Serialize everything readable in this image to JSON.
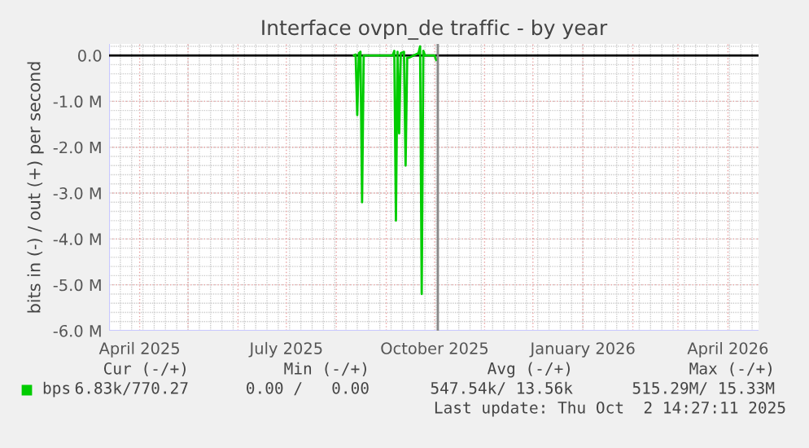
{
  "chart_data": {
    "type": "line",
    "title": "Interface ovpn_de traffic - by year",
    "ylabel": "bits in (-) / out (+) per second",
    "x": [
      "2025-08-12",
      "2025-08-13",
      "2025-08-14",
      "2025-08-15",
      "2025-08-16",
      "2025-08-17",
      "2025-08-18",
      "2025-09-05",
      "2025-09-06",
      "2025-09-07",
      "2025-09-08",
      "2025-09-09",
      "2025-09-10",
      "2025-09-12",
      "2025-09-13",
      "2025-09-14",
      "2025-09-15",
      "2025-09-21",
      "2025-09-22",
      "2025-09-23",
      "2025-09-24",
      "2025-09-25",
      "2025-10-01",
      "2025-10-02"
    ],
    "series": [
      {
        "name": "bps",
        "color": "#00cc00",
        "values": [
          0.0,
          0.02,
          -1.3,
          0.05,
          0.08,
          -3.2,
          0.0,
          0.0,
          0.1,
          -3.6,
          0.08,
          -1.7,
          0.05,
          0.08,
          -2.4,
          -0.05,
          -0.05,
          0.05,
          0.2,
          -5.2,
          0.1,
          0.0,
          0.0,
          -0.1
        ]
      }
    ],
    "xlim": [
      "2025-03-13",
      "2026-04-20"
    ],
    "xticks": [
      {
        "value": "2025-04-01",
        "label": "April 2025"
      },
      {
        "value": "2025-05-01",
        "label": null
      },
      {
        "value": "2025-06-01",
        "label": null
      },
      {
        "value": "2025-07-01",
        "label": "July 2025"
      },
      {
        "value": "2025-08-01",
        "label": null
      },
      {
        "value": "2025-09-01",
        "label": null
      },
      {
        "value": "2025-10-01",
        "label": "October 2025"
      },
      {
        "value": "2025-11-01",
        "label": null
      },
      {
        "value": "2025-12-01",
        "label": null
      },
      {
        "value": "2026-01-01",
        "label": "January 2026"
      },
      {
        "value": "2026-02-01",
        "label": null
      },
      {
        "value": "2026-03-01",
        "label": null
      },
      {
        "value": "2026-04-01",
        "label": "April 2026"
      }
    ],
    "ylim": [
      -6.0,
      0.25
    ],
    "yticks": [
      {
        "value": -6,
        "label": "-6.0 M"
      },
      {
        "value": -5,
        "label": "-5.0 M"
      },
      {
        "value": -4,
        "label": "-4.0 M"
      },
      {
        "value": -3,
        "label": "-3.0 M"
      },
      {
        "value": -2,
        "label": "-2.0 M"
      },
      {
        "value": -1,
        "label": "-1.0 M"
      },
      {
        "value": 0,
        "label": "0.0"
      }
    ],
    "ref_lines": [
      {
        "axis": "y",
        "value": 0,
        "label": null,
        "color": "#000000"
      },
      {
        "axis": "x",
        "value": "2025-10-03",
        "label": null,
        "color": "#888888"
      }
    ],
    "grid": true,
    "legend": "bottom left",
    "annotations": [
      "Cur (-/+)",
      "Min (-/+)",
      "Avg (-/+)",
      "Max (-/+)",
      "6.83k/770.27",
      "0.00 /   0.00",
      "547.54k/ 13.56k",
      "515.29M/ 15.33M",
      "Last update: Thu Oct  2 14:27:11 2025"
    ]
  }
}
